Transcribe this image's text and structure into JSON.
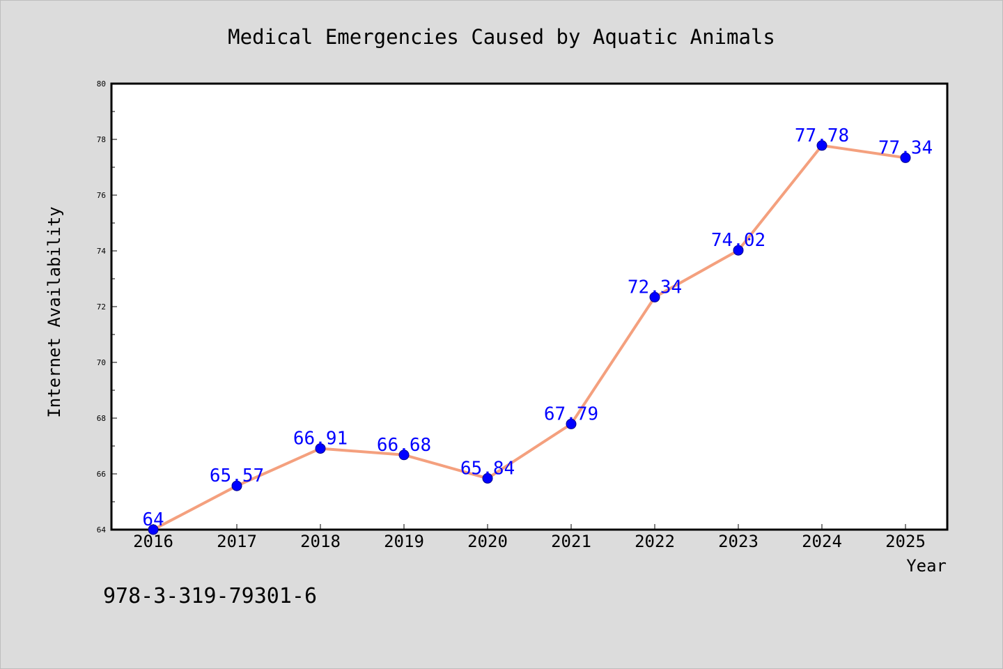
{
  "chart_data": {
    "type": "line",
    "title": "Medical Emergencies Caused by Aquatic Animals",
    "xlabel": "Year",
    "ylabel": "Internet Availability",
    "categories": [
      "2016",
      "2017",
      "2018",
      "2019",
      "2020",
      "2021",
      "2022",
      "2023",
      "2024",
      "2025"
    ],
    "series": [
      {
        "values": [
          64,
          65.57,
          66.91,
          66.68,
          65.84,
          67.79,
          72.34,
          74.02,
          77.78,
          77.34
        ],
        "labels": [
          "64",
          "65.57",
          "66.91",
          "66.68",
          "65.84",
          "67.79",
          "72.34",
          "74.02",
          "77.78",
          "77.34"
        ]
      }
    ],
    "ylim": [
      64,
      80
    ],
    "yticks": [
      "64",
      "66",
      "68",
      "70",
      "72",
      "74",
      "76",
      "78",
      "80"
    ],
    "grid": false,
    "legend": "none",
    "annotation": "978-3-319-79301-6",
    "colors": {
      "line": "#f4a07e",
      "marker": "#0000ff",
      "data_label": "#0000ff",
      "background": "#dcdcdc",
      "plot_area": "#ffffff"
    }
  }
}
